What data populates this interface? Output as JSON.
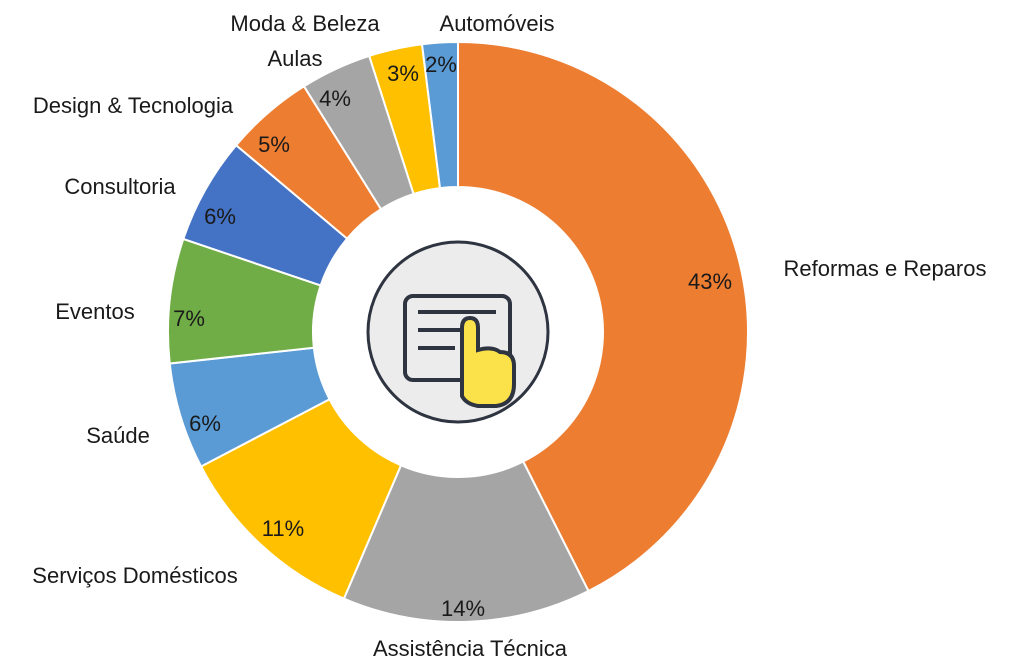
{
  "chart_data": {
    "type": "donut",
    "categories": [
      "Reformas e Reparos",
      "Assistência Técnica",
      "Serviços Domésticos",
      "Saúde",
      "Eventos",
      "Consultoria",
      "Design & Tecnologia",
      "Aulas",
      "Moda & Beleza",
      "Automóveis"
    ],
    "values": [
      43,
      14,
      11,
      6,
      7,
      6,
      5,
      4,
      3,
      2
    ],
    "value_labels": [
      "43%",
      "14%",
      "11%",
      "6%",
      "7%",
      "6%",
      "5%",
      "4%",
      "3%",
      "2%"
    ],
    "colors": [
      "#ED7D31",
      "#A5A5A5",
      "#FFC000",
      "#5B9BD5",
      "#70AD47",
      "#4472C4",
      "#ED7D31",
      "#A5A5A5",
      "#FFC000",
      "#5B9BD5"
    ]
  }
}
